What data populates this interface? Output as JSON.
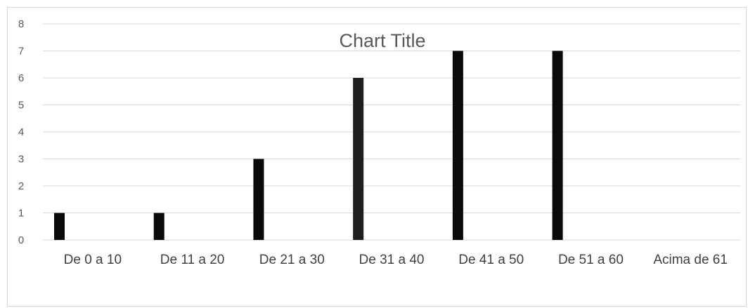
{
  "chart_data": {
    "type": "bar",
    "title": "Chart Title",
    "categories": [
      "De 0 a 10",
      "De 11 a 20",
      "De 21 a 30",
      "De 31 a 40",
      "De 41 a 50",
      "De 51 a 60",
      "Acima de 61"
    ],
    "values": [
      1,
      1,
      3,
      6,
      7,
      7,
      0
    ],
    "yticks": [
      "0",
      "1",
      "2",
      "3",
      "4",
      "5",
      "6",
      "7",
      "8"
    ],
    "ylim": [
      0,
      8
    ],
    "grid": true,
    "legend": "none",
    "colors": {
      "bar": "#0a0a0a",
      "grid": "#d9d9d9",
      "axis_text": "#595959"
    }
  }
}
